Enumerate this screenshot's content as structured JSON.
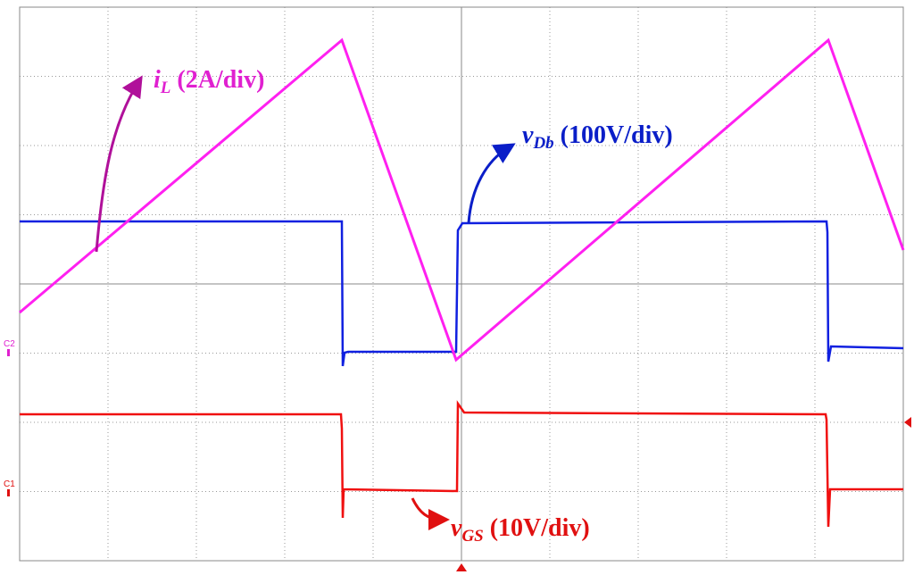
{
  "annotations": {
    "il": {
      "symbol": "i",
      "subscript": "L",
      "scale": " (2A/div)"
    },
    "vdb": {
      "symbol": "v",
      "subscript": "Db",
      "scale": " (100V/div)"
    },
    "vgs": {
      "symbol": "v",
      "subscript": "GS",
      "scale": " (10V/div)"
    }
  },
  "channels": {
    "c2": "C2",
    "c1": "C1"
  }
}
